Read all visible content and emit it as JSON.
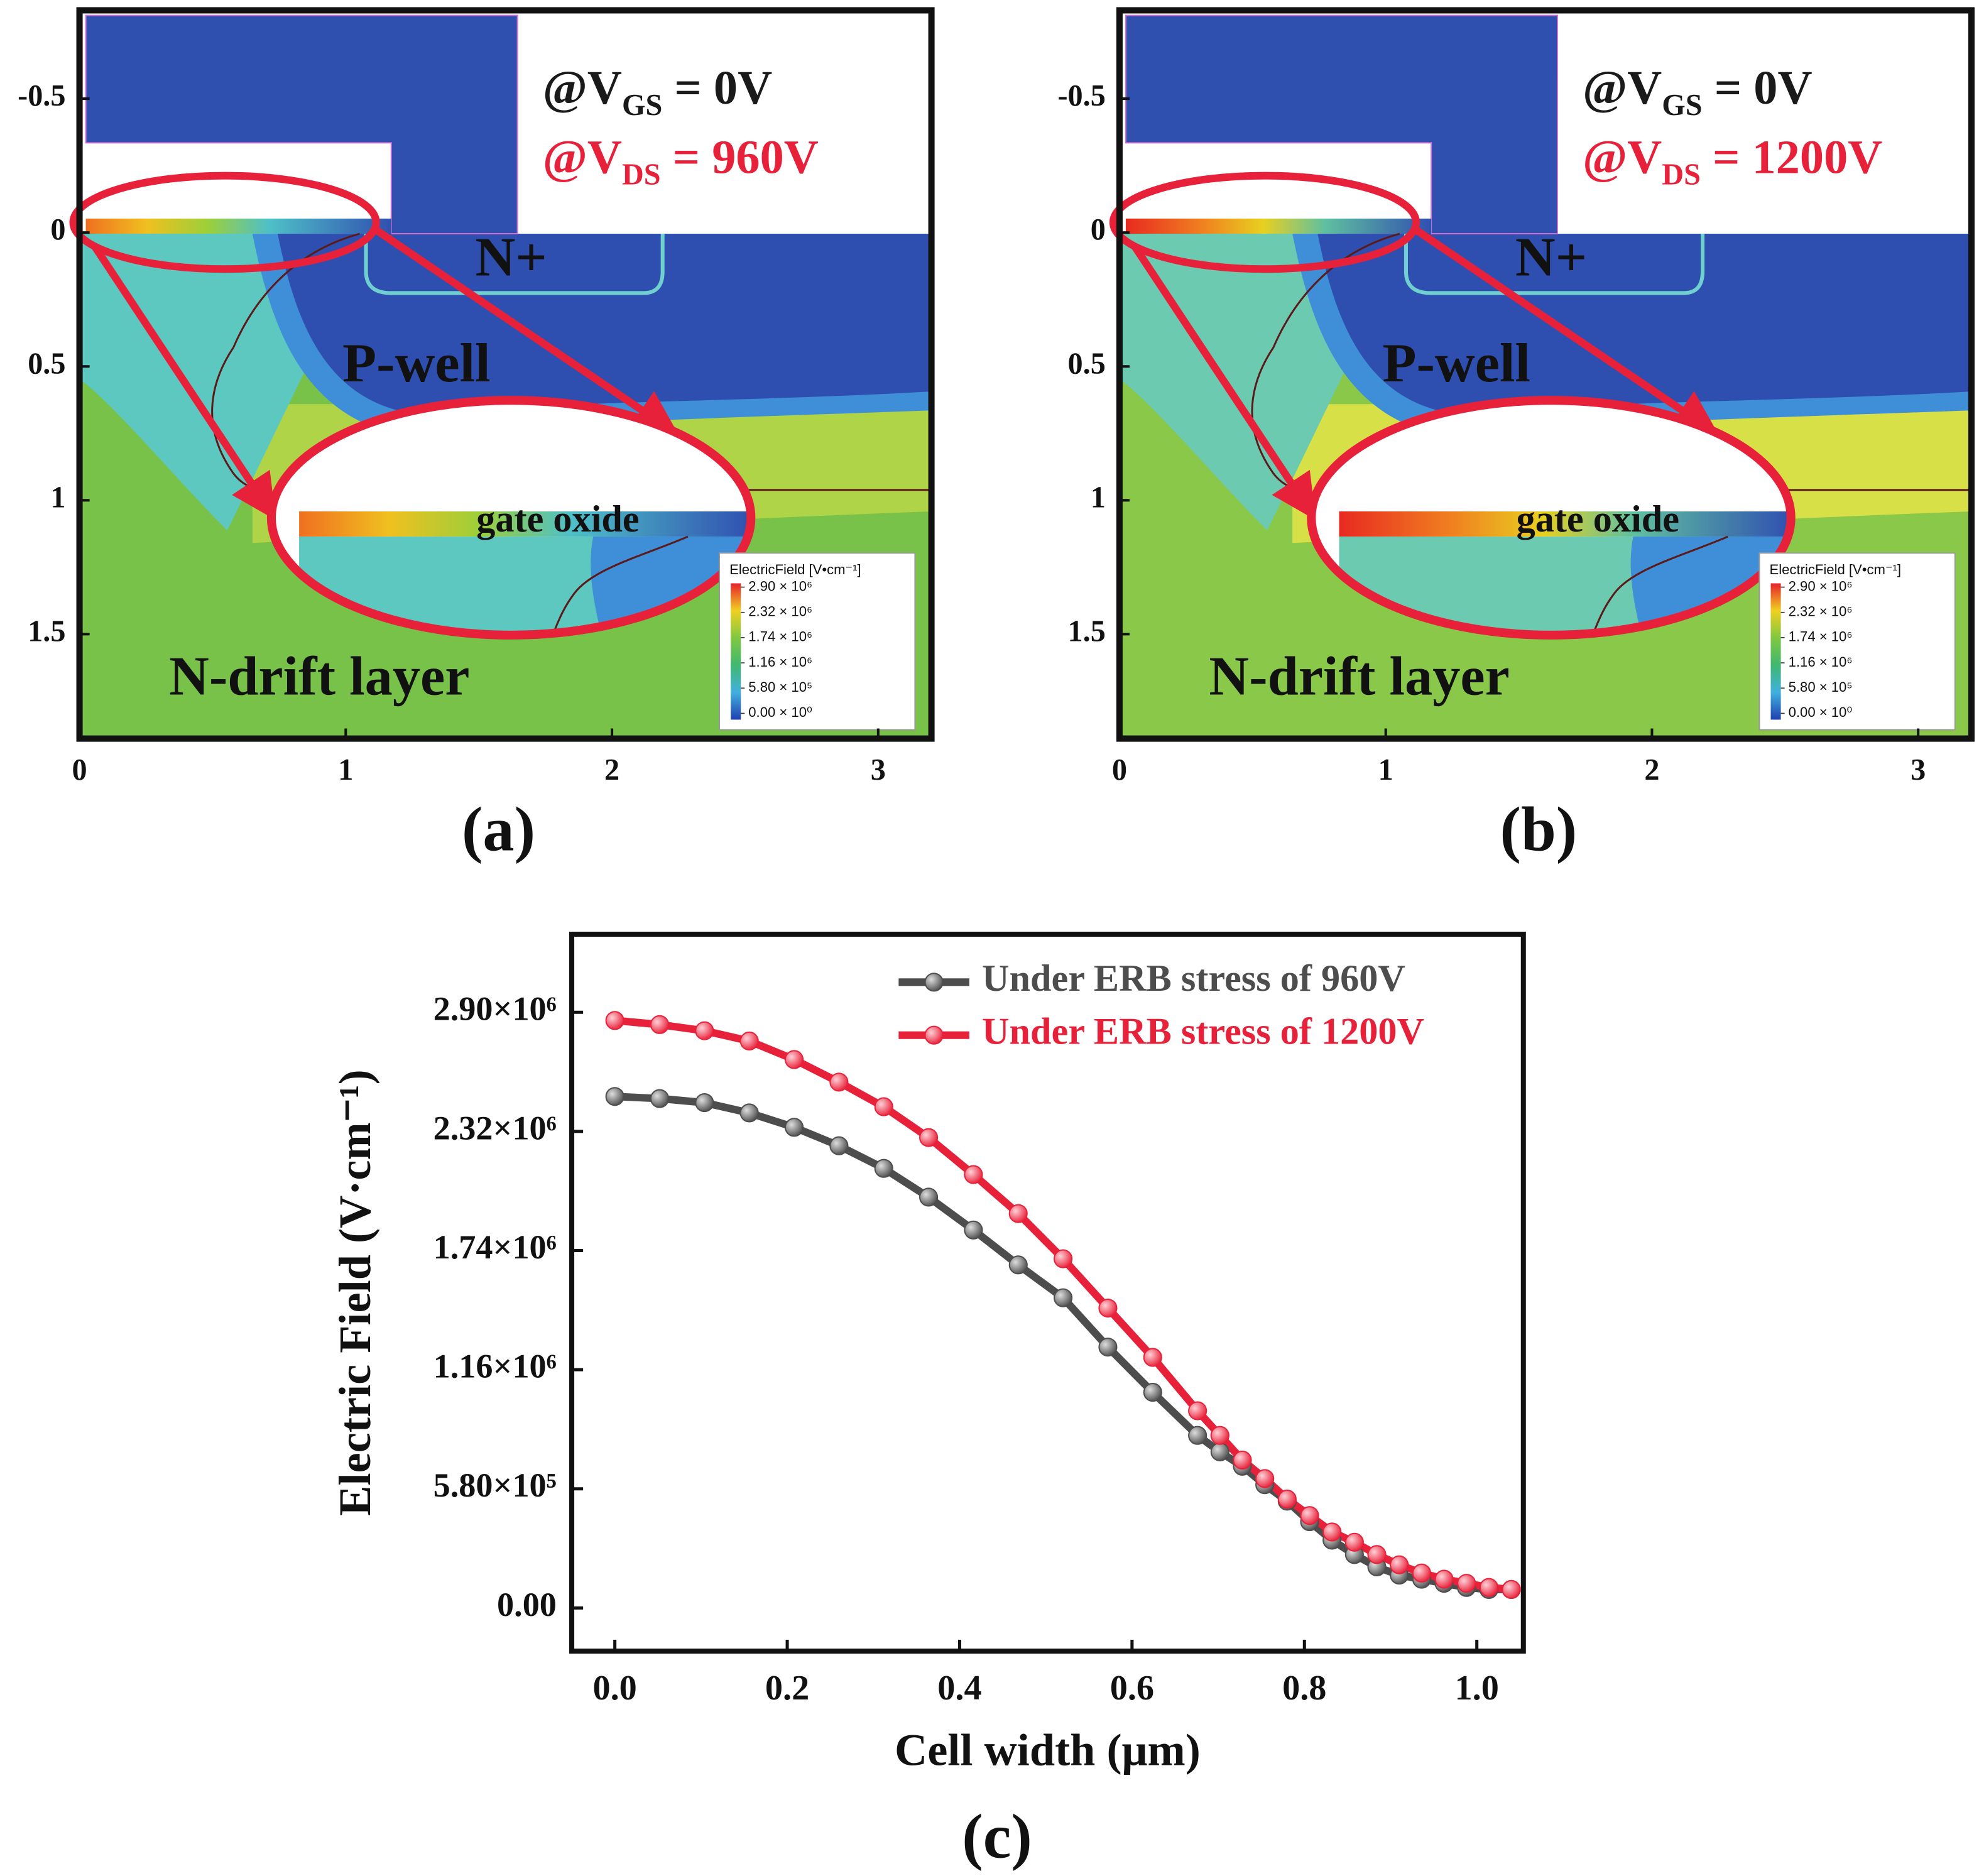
{
  "chart_data": [
    {
      "type": "contour",
      "xlim": [
        0,
        3.2
      ],
      "ylim": [
        1.89,
        -0.83
      ],
      "xticks": [
        0,
        1,
        2,
        3
      ],
      "yticks": [
        -0.5,
        0,
        0.5,
        1,
        1.5
      ],
      "bias": [
        {
          "prefix": "@V",
          "sub": "GS",
          "suffix": " = 0V",
          "color": "#1a1a1a"
        },
        {
          "prefix": "@V",
          "sub": "DS",
          "suffix": " = 960V",
          "color": "#e8213a"
        }
      ],
      "regions": [
        "N+",
        "P-well",
        "N-drift layer"
      ],
      "inset_label": "gate oxide",
      "colorbar": {
        "title": "ElectricField [V•cm⁻¹]",
        "ticks": [
          {
            "value": 2900000,
            "label": "2.90 × 10⁶"
          },
          {
            "value": 2320000,
            "label": "2.32 × 10⁶"
          },
          {
            "value": 1740000,
            "label": "1.74 × 10⁶"
          },
          {
            "value": 1160000,
            "label": "1.16 × 10⁶"
          },
          {
            "value": 580000,
            "label": "5.80 × 10⁵"
          },
          {
            "value": 0,
            "label": "0.00 × 10⁰"
          }
        ]
      },
      "panel_label": "(a)"
    },
    {
      "type": "contour",
      "xlim": [
        0,
        3.2
      ],
      "ylim": [
        1.89,
        -0.83
      ],
      "xticks": [
        0,
        1,
        2,
        3
      ],
      "yticks": [
        -0.5,
        0,
        0.5,
        1,
        1.5
      ],
      "bias": [
        {
          "prefix": "@V",
          "sub": "GS",
          "suffix": " = 0V",
          "color": "#1a1a1a"
        },
        {
          "prefix": "@V",
          "sub": "DS",
          "suffix": " = 1200V",
          "color": "#e8213a"
        }
      ],
      "regions": [
        "N+",
        "P-well",
        "N-drift layer"
      ],
      "inset_label": "gate oxide",
      "colorbar": {
        "title": "ElectricField [V•cm⁻¹]",
        "ticks": [
          {
            "value": 2900000,
            "label": "2.90 × 10⁶"
          },
          {
            "value": 2320000,
            "label": "2.32 × 10⁶"
          },
          {
            "value": 1740000,
            "label": "1.74 × 10⁶"
          },
          {
            "value": 1160000,
            "label": "1.16 × 10⁶"
          },
          {
            "value": 580000,
            "label": "5.80 × 10⁵"
          },
          {
            "value": 0,
            "label": "0.00 × 10⁰"
          }
        ]
      },
      "panel_label": "(b)"
    },
    {
      "type": "line",
      "xlabel": "Cell width (μm)",
      "ylabel": "Electric Field (V·cm⁻¹)",
      "panel_label": "(c)",
      "xlim": [
        -0.05,
        1.054
      ],
      "ylim": [
        -210000,
        3280000
      ],
      "xticks": [
        {
          "value": 0,
          "label": "0.0"
        },
        {
          "value": 0.2,
          "label": "0.2"
        },
        {
          "value": 0.4,
          "label": "0.4"
        },
        {
          "value": 0.6,
          "label": "0.6"
        },
        {
          "value": 0.8,
          "label": "0.8"
        },
        {
          "value": 1,
          "label": "1.0"
        }
      ],
      "yticks": [
        {
          "value": 0,
          "label": "0.00"
        },
        {
          "value": 580000,
          "label": "5.80×10⁵"
        },
        {
          "value": 1160000,
          "label": "1.16×10⁶"
        },
        {
          "value": 1740000,
          "label": "1.74×10⁶"
        },
        {
          "value": 2320000,
          "label": "2.32×10⁶"
        },
        {
          "value": 2900000,
          "label": "2.90×10⁶"
        }
      ],
      "legend": "upper right",
      "x": [
        0,
        0.052,
        0.104,
        0.156,
        0.208,
        0.26,
        0.312,
        0.364,
        0.416,
        0.468,
        0.52,
        0.572,
        0.624,
        0.676,
        0.702,
        0.728,
        0.754,
        0.78,
        0.806,
        0.832,
        0.858,
        0.884,
        0.91,
        0.936,
        0.962,
        0.988,
        1.014,
        1.04
      ],
      "series": [
        {
          "name": "Under ERB stress of 960V",
          "color": "#4d4d4d",
          "values": [
            2490000,
            2480000,
            2460000,
            2410000,
            2340000,
            2250000,
            2140000,
            2000000,
            1840000,
            1670000,
            1510000,
            1270000,
            1050000,
            840000,
            760000,
            690000,
            600000,
            520000,
            420000,
            330000,
            260000,
            200000,
            160000,
            140000,
            120000,
            100000,
            90000,
            90000
          ]
        },
        {
          "name": "Under ERB stress of 1200V",
          "color": "#e8213a",
          "values": [
            2860000,
            2840000,
            2810000,
            2760000,
            2670000,
            2560000,
            2440000,
            2290000,
            2110000,
            1920000,
            1700000,
            1460000,
            1220000,
            960000,
            840000,
            720000,
            630000,
            530000,
            450000,
            370000,
            320000,
            260000,
            210000,
            170000,
            140000,
            120000,
            100000,
            90000
          ]
        }
      ]
    }
  ]
}
